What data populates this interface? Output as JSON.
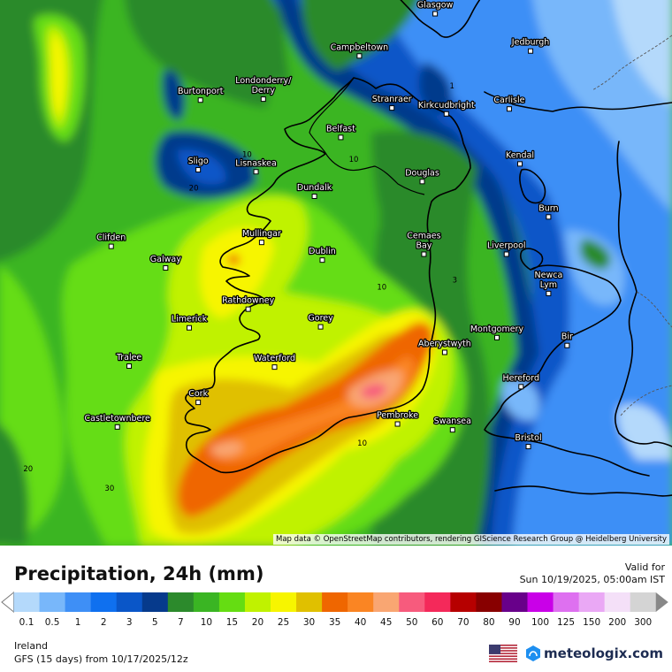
{
  "map": {
    "cities": [
      {
        "name": "Glasgow",
        "lon": -4.25,
        "lat": 55.86
      },
      {
        "name": "Campbeltown",
        "lon": -5.6,
        "lat": 55.43
      },
      {
        "name": "Jedburgh",
        "lon": -2.55,
        "lat": 55.48
      },
      {
        "name": "Burtonport",
        "lon": -8.43,
        "lat": 54.98
      },
      {
        "name": "Londonderry/\nDerry",
        "lon": -7.31,
        "lat": 54.99
      },
      {
        "name": "Stranraer",
        "lon": -5.02,
        "lat": 54.9
      },
      {
        "name": "Kirkcudbright",
        "lon": -4.05,
        "lat": 54.84
      },
      {
        "name": "Carlisle",
        "lon": -2.93,
        "lat": 54.89
      },
      {
        "name": "Belfast",
        "lon": -5.93,
        "lat": 54.6
      },
      {
        "name": "Kendal",
        "lon": -2.74,
        "lat": 54.33
      },
      {
        "name": "Sligo",
        "lon": -8.47,
        "lat": 54.27
      },
      {
        "name": "Lisnaskea",
        "lon": -7.44,
        "lat": 54.25
      },
      {
        "name": "Douglas",
        "lon": -4.48,
        "lat": 54.15
      },
      {
        "name": "Dundalk",
        "lon": -6.4,
        "lat": 54.0
      },
      {
        "name": "Burn",
        "lon": -2.23,
        "lat": 53.79
      },
      {
        "name": "Clifden",
        "lon": -10.02,
        "lat": 53.49
      },
      {
        "name": "Mullingar",
        "lon": -7.34,
        "lat": 53.53
      },
      {
        "name": "Cemaes\nBay",
        "lon": -4.45,
        "lat": 53.41
      },
      {
        "name": "Liverpool",
        "lon": -2.98,
        "lat": 53.41
      },
      {
        "name": "Galway",
        "lon": -9.05,
        "lat": 53.27
      },
      {
        "name": "Dublin",
        "lon": -6.26,
        "lat": 53.35
      },
      {
        "name": "Newca\nLym",
        "lon": -2.23,
        "lat": 53.01
      },
      {
        "name": "Rathdowney",
        "lon": -7.58,
        "lat": 52.85
      },
      {
        "name": "Limerick",
        "lon": -8.63,
        "lat": 52.66
      },
      {
        "name": "Gorey",
        "lon": -6.29,
        "lat": 52.67
      },
      {
        "name": "Montgomery",
        "lon": -3.15,
        "lat": 52.56
      },
      {
        "name": "Aberystwyth",
        "lon": -4.08,
        "lat": 52.41
      },
      {
        "name": "Bir",
        "lon": -1.9,
        "lat": 52.48
      },
      {
        "name": "Tralee",
        "lon": -9.7,
        "lat": 52.27
      },
      {
        "name": "Waterford",
        "lon": -7.11,
        "lat": 52.26
      },
      {
        "name": "Hereford",
        "lon": -2.72,
        "lat": 52.06
      },
      {
        "name": "Cork",
        "lon": -8.47,
        "lat": 51.9
      },
      {
        "name": "Pembroke",
        "lon": -4.92,
        "lat": 51.68
      },
      {
        "name": "Swansea",
        "lon": -3.94,
        "lat": 51.62
      },
      {
        "name": "Castletownbere",
        "lon": -9.91,
        "lat": 51.65
      },
      {
        "name": "Bristol",
        "lon": -2.59,
        "lat": 51.45
      }
    ],
    "isoline_labels": [
      {
        "text": "1",
        "lon": -3.95,
        "lat": 55.1
      },
      {
        "text": "10",
        "lon": -7.6,
        "lat": 54.4
      },
      {
        "text": "10",
        "lon": -5.7,
        "lat": 54.35
      },
      {
        "text": "20",
        "lon": -8.55,
        "lat": 54.06
      },
      {
        "text": "3",
        "lon": -3.9,
        "lat": 53.12
      },
      {
        "text": "10",
        "lon": -5.2,
        "lat": 53.05
      },
      {
        "text": "10",
        "lon": -5.55,
        "lat": 51.46
      },
      {
        "text": "20",
        "lon": -11.5,
        "lat": 51.2
      },
      {
        "text": "30",
        "lon": -10.05,
        "lat": 51.0
      }
    ],
    "attribution": "Map data © OpenStreetMap contributors, rendering GIScience Research Group @ Heidelberg University"
  },
  "header": {
    "title": "Precipitation, 24h (mm)",
    "valid_label": "Valid for",
    "valid_time": "Sun 10/19/2025, 05:00am IST"
  },
  "legend": {
    "values": [
      "0.1",
      "0.5",
      "1",
      "2",
      "3",
      "5",
      "7",
      "10",
      "15",
      "20",
      "25",
      "30",
      "35",
      "40",
      "45",
      "50",
      "60",
      "70",
      "80",
      "90",
      "100",
      "125",
      "150",
      "200",
      "300"
    ],
    "colors": [
      "#b4d9fb",
      "#78b7fa",
      "#3e8ff6",
      "#0f70ef",
      "#0a56c8",
      "#063a8c",
      "#2c8a2c",
      "#3ab523",
      "#65dd12",
      "#c0f200",
      "#f7f500",
      "#e0c000",
      "#ef6600",
      "#fa8523",
      "#f9a672",
      "#f75b7d",
      "#f4295a",
      "#b60000",
      "#880000",
      "#68008a",
      "#c900e8",
      "#de70f0",
      "#eaa8f5",
      "#f4e0f8",
      "#d4d4d4"
    ]
  },
  "footer": {
    "region": "Ireland",
    "model_run": "GFS (15 days) from  10/17/2025/12z",
    "brand": "meteologix.com"
  }
}
